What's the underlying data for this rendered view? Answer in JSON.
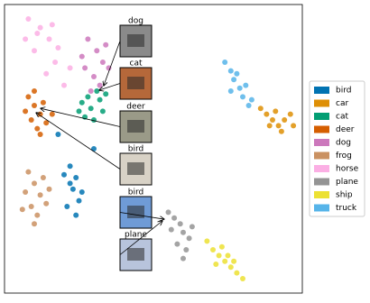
{
  "chart_data": {
    "type": "scatter",
    "xlim": [
      0,
      100
    ],
    "ylim": [
      0,
      100
    ],
    "legend": "right",
    "series": [
      {
        "name": "bird",
        "color": "#0173b2",
        "x": [
          22,
          24,
          23,
          25,
          21,
          24,
          22,
          26,
          20,
          18,
          30
        ],
        "y": [
          44,
          40,
          36,
          32,
          30,
          27,
          38,
          35,
          41,
          55,
          50
        ]
      },
      {
        "name": "car",
        "color": "#de8f05",
        "x": [
          86,
          88,
          90,
          92,
          94,
          96,
          91,
          93,
          89,
          97
        ],
        "y": [
          64,
          62,
          60,
          58,
          60,
          62,
          63,
          56,
          58,
          58
        ]
      },
      {
        "name": "cat",
        "color": "#029e73",
        "x": [
          26,
          29,
          32,
          27,
          30,
          33,
          25,
          31,
          28,
          34
        ],
        "y": [
          66,
          64,
          67,
          61,
          60,
          63,
          63,
          70,
          68,
          69
        ]
      },
      {
        "name": "deer",
        "color": "#d55e00",
        "x": [
          8,
          10,
          12,
          9,
          11,
          13,
          7,
          14,
          10,
          12,
          16
        ],
        "y": [
          68,
          65,
          62,
          60,
          57,
          66,
          63,
          59,
          70,
          55,
          62
        ]
      },
      {
        "name": "dog",
        "color": "#cc78bc",
        "x": [
          28,
          31,
          33,
          27,
          30,
          34,
          26,
          32,
          29,
          35
        ],
        "y": [
          88,
          84,
          80,
          78,
          75,
          86,
          82,
          72,
          70,
          78
        ]
      },
      {
        "name": "frog",
        "color": "#ca9161",
        "x": [
          8,
          10,
          12,
          9,
          11,
          13,
          7,
          14,
          10,
          15,
          6
        ],
        "y": [
          42,
          38,
          34,
          30,
          27,
          40,
          35,
          31,
          24,
          36,
          29
        ]
      },
      {
        "name": "horse",
        "color": "#fbafe4",
        "x": [
          8,
          12,
          15,
          10,
          17,
          14,
          20,
          11,
          18,
          22,
          7,
          16
        ],
        "y": [
          95,
          92,
          88,
          84,
          80,
          76,
          72,
          90,
          85,
          78,
          88,
          93
        ]
      },
      {
        "name": "plane",
        "color": "#949494",
        "x": [
          55,
          57,
          59,
          60,
          62,
          58,
          61,
          56,
          63,
          60
        ],
        "y": [
          28,
          26,
          24,
          21,
          19,
          17,
          15,
          22,
          23,
          12
        ]
      },
      {
        "name": "ship",
        "color": "#ece133",
        "x": [
          68,
          70,
          72,
          74,
          76,
          78,
          73,
          75,
          71,
          77,
          80
        ],
        "y": [
          18,
          15,
          13,
          11,
          9,
          7,
          16,
          13,
          10,
          11,
          5
        ]
      },
      {
        "name": "truck",
        "color": "#56b4e9",
        "x": [
          74,
          76,
          77,
          79,
          80,
          82,
          78,
          81,
          76,
          83
        ],
        "y": [
          80,
          77,
          74,
          71,
          68,
          65,
          76,
          72,
          70,
          67
        ]
      }
    ],
    "annotations": [
      {
        "text": "dog",
        "x": 33.3,
        "y": 71.9
      },
      {
        "text": "cat",
        "x": 31.8,
        "y": 70.3
      },
      {
        "text": "deer",
        "x": 12.1,
        "y": 64
      },
      {
        "text": "bird",
        "x": 10.6,
        "y": 62.5
      },
      {
        "text": "bird",
        "x": 53.6,
        "y": 25.6
      },
      {
        "text": "plane",
        "x": 53,
        "y": 25
      }
    ]
  }
}
